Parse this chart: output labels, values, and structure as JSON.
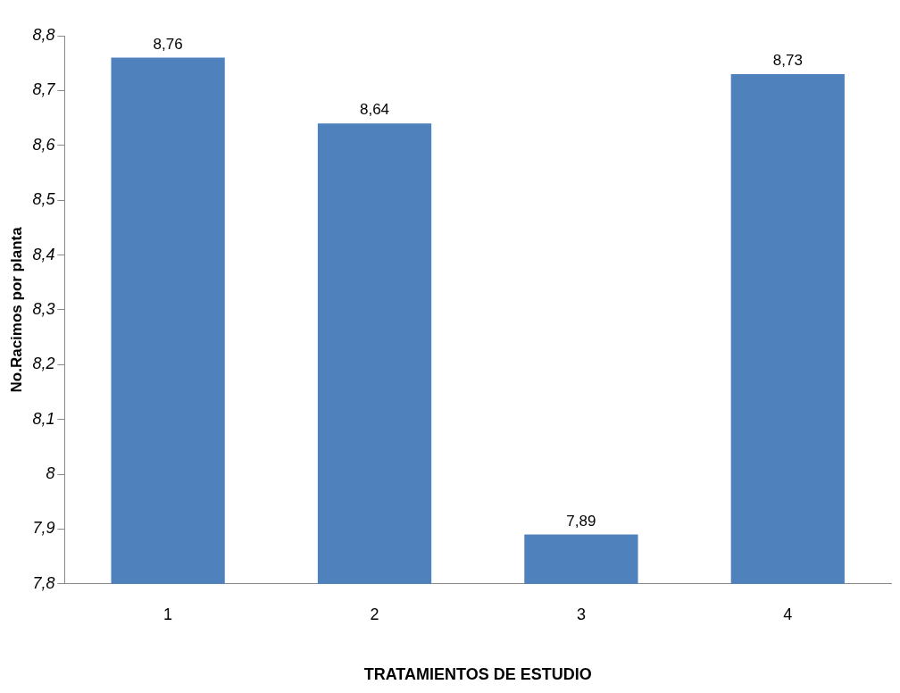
{
  "chart_data": {
    "type": "bar",
    "xlabel": "TRATAMIENTOS DE ESTUDIO",
    "ylabel": "No.Racimos por planta",
    "categories": [
      "1",
      "2",
      "3",
      "4"
    ],
    "values": [
      8.76,
      8.64,
      7.89,
      8.73
    ],
    "value_labels": [
      "8,76",
      "8,64",
      "7,89",
      "8,73"
    ],
    "color": "#4f81bd",
    "ylim": [
      7.8,
      8.8
    ],
    "yticks": [
      {
        "value": 7.8,
        "label": "7,8"
      },
      {
        "value": 7.9,
        "label": "7,9"
      },
      {
        "value": 8,
        "label": "8"
      },
      {
        "value": 8.1,
        "label": "8,1"
      },
      {
        "value": 8.2,
        "label": "8,2"
      },
      {
        "value": 8.3,
        "label": "8,3"
      },
      {
        "value": 8.4,
        "label": "8,4"
      },
      {
        "value": 8.5,
        "label": "8,5"
      },
      {
        "value": 8.6,
        "label": "8,6"
      },
      {
        "value": 8.7,
        "label": "8,7"
      },
      {
        "value": 8.8,
        "label": "8,8"
      }
    ],
    "grid": false,
    "legend": false
  }
}
